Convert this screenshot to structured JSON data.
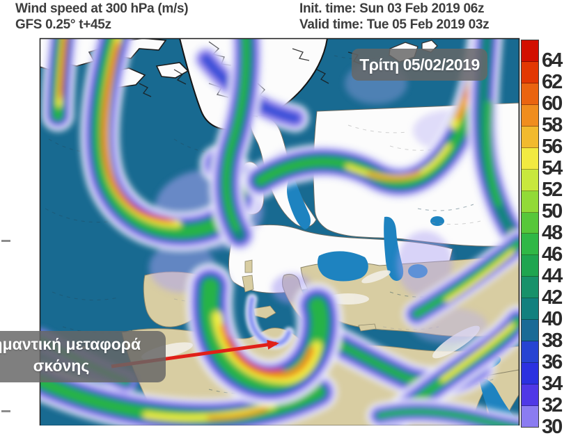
{
  "header": {
    "title_line1": "Wind speed at 300 hPa (m/s)",
    "title_line2": "GFS 0.25° t+45z",
    "init_time": "Init. time: Sun 03 Feb 2019 06z",
    "valid_time": "Valid time: Tue 05 Feb 2019 03z"
  },
  "map": {
    "date_badge": "Τρίτη 05/02/2019",
    "annotation": {
      "line1": "σημαντική μεταφορά",
      "line2": "σκόνης"
    },
    "colors": {
      "ocean": "#186a91",
      "land_north": "#fcfcfc",
      "land_south": "#d8cda2",
      "inland_sea": "#1e83c0",
      "coastline": "#5a5a52",
      "arrow": "#e02018",
      "badge_bg": "rgba(102,102,102,0.84)"
    }
  },
  "colorbar": {
    "segments": [
      {
        "color": "#d21000",
        "label": "64"
      },
      {
        "color": "#e23803",
        "label": "62"
      },
      {
        "color": "#ea6410",
        "label": "60"
      },
      {
        "color": "#f08d1e",
        "label": "58"
      },
      {
        "color": "#f2ba2e",
        "label": "56"
      },
      {
        "color": "#f2ea41",
        "label": "54"
      },
      {
        "color": "#c8e83d",
        "label": "52"
      },
      {
        "color": "#92da37",
        "label": "50"
      },
      {
        "color": "#57c73a",
        "label": "48"
      },
      {
        "color": "#30b846",
        "label": "46"
      },
      {
        "color": "#1fa550",
        "label": "44"
      },
      {
        "color": "#18916a",
        "label": "42"
      },
      {
        "color": "#12807e",
        "label": "40"
      },
      {
        "color": "#1a6a96",
        "label": "38"
      },
      {
        "color": "#2744d2",
        "label": "36"
      },
      {
        "color": "#2b31e0",
        "label": "34"
      },
      {
        "color": "#4f38e6",
        "label": "32"
      },
      {
        "color": "#8b7cf1",
        "label": "30"
      }
    ]
  }
}
